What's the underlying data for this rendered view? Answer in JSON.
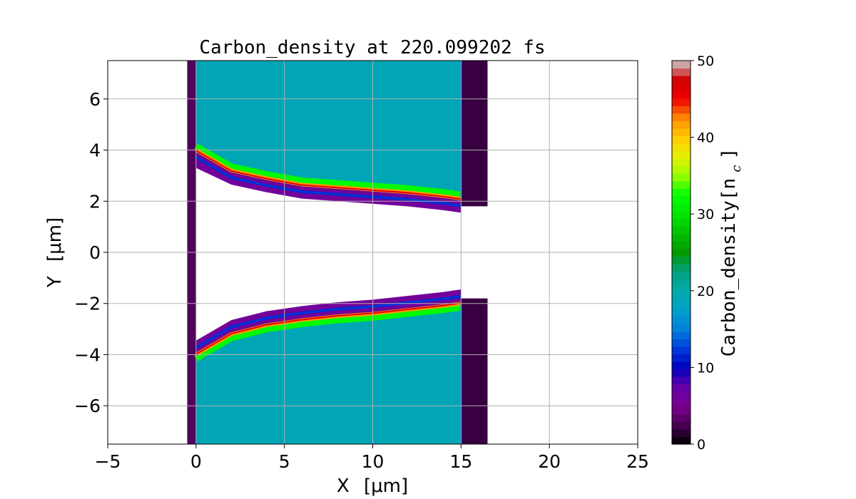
{
  "chart_data": {
    "type": "heatmap",
    "title": "Carbon_density at 220.099202 fs",
    "xlabel": "X",
    "xlabel_unit": "[μm]",
    "ylabel": "Y",
    "ylabel_unit": "[μm]",
    "xlim": [
      -5,
      25
    ],
    "ylim": [
      -7.5,
      7.5
    ],
    "x_ticks": [
      -5,
      0,
      5,
      10,
      15,
      20,
      25
    ],
    "x_tick_labels": [
      "−5",
      "0",
      "5",
      "10",
      "15",
      "20",
      "25"
    ],
    "y_ticks": [
      -6,
      -4,
      -2,
      0,
      2,
      4,
      6
    ],
    "y_tick_labels": [
      "−6",
      "−4",
      "−2",
      "0",
      "2",
      "4",
      "6"
    ],
    "grid": true,
    "colorbar": {
      "label": "Carbon_density[n",
      "label_sub": "c",
      "label_close": "]",
      "range": [
        0,
        50
      ],
      "ticks": [
        0,
        10,
        20,
        30,
        40,
        50
      ],
      "tick_labels": [
        "0",
        "10",
        "20",
        "30",
        "40",
        "50"
      ],
      "colormap": "nipy_spectral",
      "levels": 51
    },
    "regions": {
      "bulk_target": {
        "x": [
          0,
          15
        ],
        "y": [
          -7.5,
          7.5
        ],
        "density": 19
      },
      "rear_sheath": {
        "x": [
          15,
          16.5
        ],
        "density": 2
      },
      "front_sheath": {
        "x": [
          -0.5,
          0
        ],
        "density": 3
      },
      "upper_channel_edge": {
        "x": [
          0,
          2,
          4,
          6,
          8,
          10,
          12,
          14,
          15
        ],
        "y": [
          4.0,
          3.2,
          2.9,
          2.65,
          2.55,
          2.45,
          2.35,
          2.2,
          2.1
        ],
        "peak_density": 48
      },
      "lower_channel_edge": {
        "x": [
          0,
          2,
          4,
          6,
          8,
          10,
          12,
          14,
          15
        ],
        "y": [
          -4.0,
          -3.2,
          -2.85,
          -2.65,
          -2.5,
          -2.4,
          -2.25,
          -2.1,
          -2.0
        ],
        "peak_density": 48
      },
      "channel_gap_y": [
        -1.7,
        1.7
      ]
    }
  }
}
